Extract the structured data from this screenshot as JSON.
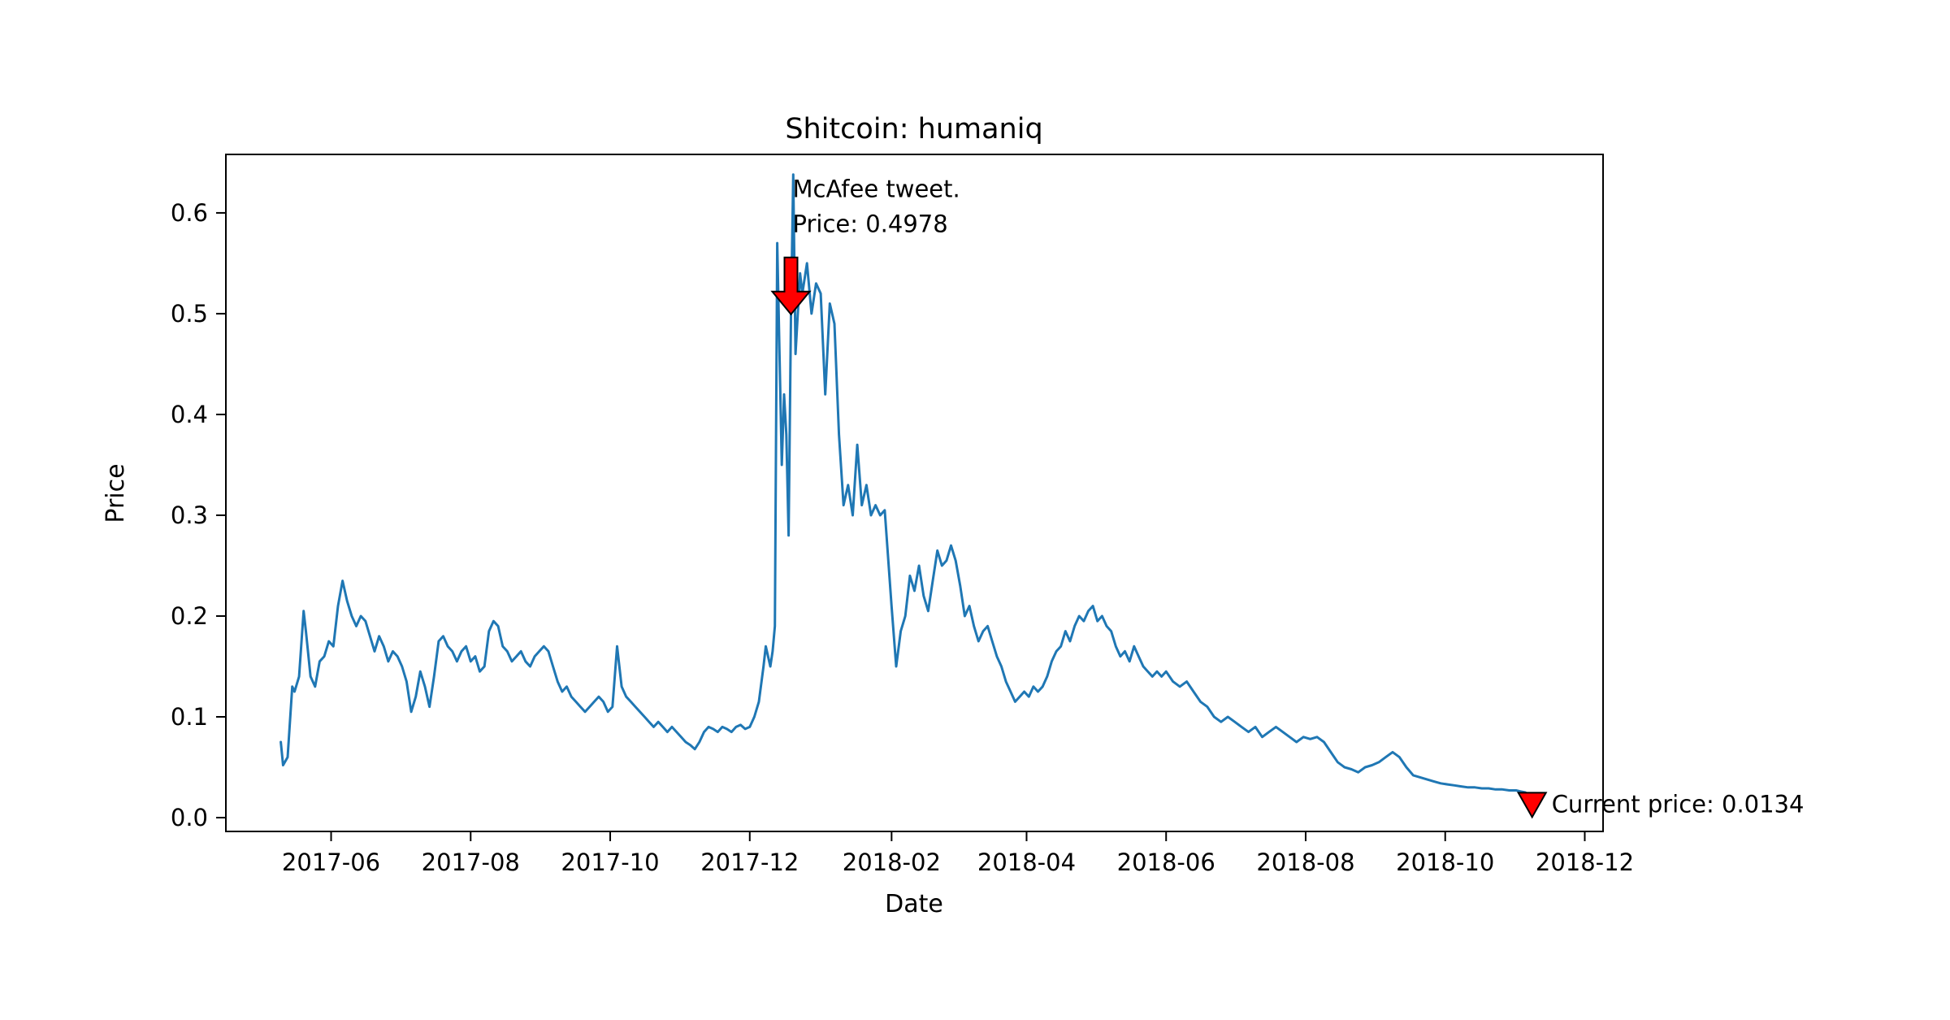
{
  "figure": {
    "background": "#ffffff"
  },
  "chart_data": {
    "type": "line",
    "title": "Shitcoin: humaniq",
    "xlabel": "Date",
    "ylabel": "Price",
    "line_color": "#1f77b4",
    "grid": false,
    "legend": "none",
    "xlim": [
      "2017-04-16",
      "2018-12-09"
    ],
    "ylim": [
      -0.0137,
      0.658
    ],
    "xticks": [
      "2017-06",
      "2017-08",
      "2017-10",
      "2017-12",
      "2018-02",
      "2018-04",
      "2018-06",
      "2018-08",
      "2018-10",
      "2018-12"
    ],
    "yticks": [
      0.0,
      0.1,
      0.2,
      0.3,
      0.4,
      0.5,
      0.6
    ],
    "points": [
      [
        "2017-05-10",
        0.075
      ],
      [
        "2017-05-11",
        0.052
      ],
      [
        "2017-05-13",
        0.06
      ],
      [
        "2017-05-15",
        0.13
      ],
      [
        "2017-05-16",
        0.125
      ],
      [
        "2017-05-18",
        0.14
      ],
      [
        "2017-05-20",
        0.205
      ],
      [
        "2017-05-21",
        0.185
      ],
      [
        "2017-05-23",
        0.14
      ],
      [
        "2017-05-25",
        0.13
      ],
      [
        "2017-05-27",
        0.155
      ],
      [
        "2017-05-29",
        0.16
      ],
      [
        "2017-05-31",
        0.175
      ],
      [
        "2017-06-02",
        0.17
      ],
      [
        "2017-06-04",
        0.21
      ],
      [
        "2017-06-06",
        0.235
      ],
      [
        "2017-06-08",
        0.215
      ],
      [
        "2017-06-10",
        0.2
      ],
      [
        "2017-06-12",
        0.19
      ],
      [
        "2017-06-14",
        0.2
      ],
      [
        "2017-06-16",
        0.195
      ],
      [
        "2017-06-18",
        0.18
      ],
      [
        "2017-06-20",
        0.165
      ],
      [
        "2017-06-22",
        0.18
      ],
      [
        "2017-06-24",
        0.17
      ],
      [
        "2017-06-26",
        0.155
      ],
      [
        "2017-06-28",
        0.165
      ],
      [
        "2017-06-30",
        0.16
      ],
      [
        "2017-07-02",
        0.15
      ],
      [
        "2017-07-04",
        0.135
      ],
      [
        "2017-07-06",
        0.105
      ],
      [
        "2017-07-08",
        0.12
      ],
      [
        "2017-07-10",
        0.145
      ],
      [
        "2017-07-12",
        0.13
      ],
      [
        "2017-07-14",
        0.11
      ],
      [
        "2017-07-16",
        0.14
      ],
      [
        "2017-07-18",
        0.175
      ],
      [
        "2017-07-20",
        0.18
      ],
      [
        "2017-07-22",
        0.17
      ],
      [
        "2017-07-24",
        0.165
      ],
      [
        "2017-07-26",
        0.155
      ],
      [
        "2017-07-28",
        0.165
      ],
      [
        "2017-07-30",
        0.17
      ],
      [
        "2017-08-01",
        0.155
      ],
      [
        "2017-08-03",
        0.16
      ],
      [
        "2017-08-05",
        0.145
      ],
      [
        "2017-08-07",
        0.15
      ],
      [
        "2017-08-09",
        0.185
      ],
      [
        "2017-08-11",
        0.195
      ],
      [
        "2017-08-13",
        0.19
      ],
      [
        "2017-08-15",
        0.17
      ],
      [
        "2017-08-17",
        0.165
      ],
      [
        "2017-08-19",
        0.155
      ],
      [
        "2017-08-21",
        0.16
      ],
      [
        "2017-08-23",
        0.165
      ],
      [
        "2017-08-25",
        0.155
      ],
      [
        "2017-08-27",
        0.15
      ],
      [
        "2017-08-29",
        0.16
      ],
      [
        "2017-08-31",
        0.165
      ],
      [
        "2017-09-02",
        0.17
      ],
      [
        "2017-09-04",
        0.165
      ],
      [
        "2017-09-06",
        0.15
      ],
      [
        "2017-09-08",
        0.135
      ],
      [
        "2017-09-10",
        0.125
      ],
      [
        "2017-09-12",
        0.13
      ],
      [
        "2017-09-14",
        0.12
      ],
      [
        "2017-09-16",
        0.115
      ],
      [
        "2017-09-18",
        0.11
      ],
      [
        "2017-09-20",
        0.105
      ],
      [
        "2017-09-22",
        0.11
      ],
      [
        "2017-09-24",
        0.115
      ],
      [
        "2017-09-26",
        0.12
      ],
      [
        "2017-09-28",
        0.115
      ],
      [
        "2017-09-30",
        0.105
      ],
      [
        "2017-10-02",
        0.11
      ],
      [
        "2017-10-04",
        0.17
      ],
      [
        "2017-10-06",
        0.13
      ],
      [
        "2017-10-08",
        0.12
      ],
      [
        "2017-10-10",
        0.115
      ],
      [
        "2017-10-12",
        0.11
      ],
      [
        "2017-10-14",
        0.105
      ],
      [
        "2017-10-16",
        0.1
      ],
      [
        "2017-10-18",
        0.095
      ],
      [
        "2017-10-20",
        0.09
      ],
      [
        "2017-10-22",
        0.095
      ],
      [
        "2017-10-24",
        0.09
      ],
      [
        "2017-10-26",
        0.085
      ],
      [
        "2017-10-28",
        0.09
      ],
      [
        "2017-10-30",
        0.085
      ],
      [
        "2017-11-01",
        0.08
      ],
      [
        "2017-11-03",
        0.075
      ],
      [
        "2017-11-05",
        0.072
      ],
      [
        "2017-11-07",
        0.068
      ],
      [
        "2017-11-09",
        0.075
      ],
      [
        "2017-11-11",
        0.085
      ],
      [
        "2017-11-13",
        0.09
      ],
      [
        "2017-11-15",
        0.088
      ],
      [
        "2017-11-17",
        0.085
      ],
      [
        "2017-11-19",
        0.09
      ],
      [
        "2017-11-21",
        0.088
      ],
      [
        "2017-11-23",
        0.085
      ],
      [
        "2017-11-25",
        0.09
      ],
      [
        "2017-11-27",
        0.092
      ],
      [
        "2017-11-29",
        0.088
      ],
      [
        "2017-12-01",
        0.09
      ],
      [
        "2017-12-03",
        0.1
      ],
      [
        "2017-12-05",
        0.115
      ],
      [
        "2017-12-07",
        0.15
      ],
      [
        "2017-12-08",
        0.17
      ],
      [
        "2017-12-09",
        0.16
      ],
      [
        "2017-12-10",
        0.15
      ],
      [
        "2017-12-11",
        0.165
      ],
      [
        "2017-12-12",
        0.19
      ],
      [
        "2017-12-13",
        0.57
      ],
      [
        "2017-12-14",
        0.46
      ],
      [
        "2017-12-15",
        0.35
      ],
      [
        "2017-12-16",
        0.42
      ],
      [
        "2017-12-17",
        0.38
      ],
      [
        "2017-12-18",
        0.28
      ],
      [
        "2017-12-19",
        0.4978
      ],
      [
        "2017-12-20",
        0.638
      ],
      [
        "2017-12-21",
        0.46
      ],
      [
        "2017-12-22",
        0.5
      ],
      [
        "2017-12-23",
        0.54
      ],
      [
        "2017-12-24",
        0.52
      ],
      [
        "2017-12-26",
        0.55
      ],
      [
        "2017-12-28",
        0.5
      ],
      [
        "2017-12-30",
        0.53
      ],
      [
        "2018-01-01",
        0.52
      ],
      [
        "2018-01-03",
        0.42
      ],
      [
        "2018-01-05",
        0.51
      ],
      [
        "2018-01-07",
        0.49
      ],
      [
        "2018-01-09",
        0.38
      ],
      [
        "2018-01-11",
        0.31
      ],
      [
        "2018-01-13",
        0.33
      ],
      [
        "2018-01-15",
        0.3
      ],
      [
        "2018-01-17",
        0.37
      ],
      [
        "2018-01-19",
        0.31
      ],
      [
        "2018-01-21",
        0.33
      ],
      [
        "2018-01-23",
        0.3
      ],
      [
        "2018-01-25",
        0.31
      ],
      [
        "2018-01-27",
        0.3
      ],
      [
        "2018-01-29",
        0.305
      ],
      [
        "2018-02-01",
        0.21
      ],
      [
        "2018-02-03",
        0.15
      ],
      [
        "2018-02-05",
        0.185
      ],
      [
        "2018-02-07",
        0.2
      ],
      [
        "2018-02-09",
        0.24
      ],
      [
        "2018-02-11",
        0.225
      ],
      [
        "2018-02-13",
        0.25
      ],
      [
        "2018-02-15",
        0.22
      ],
      [
        "2018-02-17",
        0.205
      ],
      [
        "2018-02-19",
        0.235
      ],
      [
        "2018-02-21",
        0.265
      ],
      [
        "2018-02-23",
        0.25
      ],
      [
        "2018-02-25",
        0.255
      ],
      [
        "2018-02-27",
        0.27
      ],
      [
        "2018-03-01",
        0.255
      ],
      [
        "2018-03-03",
        0.23
      ],
      [
        "2018-03-05",
        0.2
      ],
      [
        "2018-03-07",
        0.21
      ],
      [
        "2018-03-09",
        0.19
      ],
      [
        "2018-03-11",
        0.175
      ],
      [
        "2018-03-13",
        0.185
      ],
      [
        "2018-03-15",
        0.19
      ],
      [
        "2018-03-17",
        0.175
      ],
      [
        "2018-03-19",
        0.16
      ],
      [
        "2018-03-21",
        0.15
      ],
      [
        "2018-03-23",
        0.135
      ],
      [
        "2018-03-25",
        0.125
      ],
      [
        "2018-03-27",
        0.115
      ],
      [
        "2018-03-29",
        0.12
      ],
      [
        "2018-03-31",
        0.125
      ],
      [
        "2018-04-02",
        0.12
      ],
      [
        "2018-04-04",
        0.13
      ],
      [
        "2018-04-06",
        0.125
      ],
      [
        "2018-04-08",
        0.13
      ],
      [
        "2018-04-10",
        0.14
      ],
      [
        "2018-04-12",
        0.155
      ],
      [
        "2018-04-14",
        0.165
      ],
      [
        "2018-04-16",
        0.17
      ],
      [
        "2018-04-18",
        0.185
      ],
      [
        "2018-04-20",
        0.175
      ],
      [
        "2018-04-22",
        0.19
      ],
      [
        "2018-04-24",
        0.2
      ],
      [
        "2018-04-26",
        0.195
      ],
      [
        "2018-04-28",
        0.205
      ],
      [
        "2018-04-30",
        0.21
      ],
      [
        "2018-05-02",
        0.195
      ],
      [
        "2018-05-04",
        0.2
      ],
      [
        "2018-05-06",
        0.19
      ],
      [
        "2018-05-08",
        0.185
      ],
      [
        "2018-05-10",
        0.17
      ],
      [
        "2018-05-12",
        0.16
      ],
      [
        "2018-05-14",
        0.165
      ],
      [
        "2018-05-16",
        0.155
      ],
      [
        "2018-05-18",
        0.17
      ],
      [
        "2018-05-20",
        0.16
      ],
      [
        "2018-05-22",
        0.15
      ],
      [
        "2018-05-24",
        0.145
      ],
      [
        "2018-05-26",
        0.14
      ],
      [
        "2018-05-28",
        0.145
      ],
      [
        "2018-05-30",
        0.14
      ],
      [
        "2018-06-01",
        0.145
      ],
      [
        "2018-06-04",
        0.135
      ],
      [
        "2018-06-07",
        0.13
      ],
      [
        "2018-06-10",
        0.135
      ],
      [
        "2018-06-13",
        0.125
      ],
      [
        "2018-06-16",
        0.115
      ],
      [
        "2018-06-19",
        0.11
      ],
      [
        "2018-06-22",
        0.1
      ],
      [
        "2018-06-25",
        0.095
      ],
      [
        "2018-06-28",
        0.1
      ],
      [
        "2018-07-01",
        0.095
      ],
      [
        "2018-07-04",
        0.09
      ],
      [
        "2018-07-07",
        0.085
      ],
      [
        "2018-07-10",
        0.09
      ],
      [
        "2018-07-13",
        0.08
      ],
      [
        "2018-07-16",
        0.085
      ],
      [
        "2018-07-19",
        0.09
      ],
      [
        "2018-07-22",
        0.085
      ],
      [
        "2018-07-25",
        0.08
      ],
      [
        "2018-07-28",
        0.075
      ],
      [
        "2018-07-31",
        0.08
      ],
      [
        "2018-08-03",
        0.078
      ],
      [
        "2018-08-06",
        0.08
      ],
      [
        "2018-08-09",
        0.075
      ],
      [
        "2018-08-12",
        0.065
      ],
      [
        "2018-08-15",
        0.055
      ],
      [
        "2018-08-18",
        0.05
      ],
      [
        "2018-08-21",
        0.048
      ],
      [
        "2018-08-24",
        0.045
      ],
      [
        "2018-08-27",
        0.05
      ],
      [
        "2018-08-30",
        0.052
      ],
      [
        "2018-09-02",
        0.055
      ],
      [
        "2018-09-05",
        0.06
      ],
      [
        "2018-09-08",
        0.065
      ],
      [
        "2018-09-11",
        0.06
      ],
      [
        "2018-09-14",
        0.05
      ],
      [
        "2018-09-17",
        0.042
      ],
      [
        "2018-09-20",
        0.04
      ],
      [
        "2018-09-23",
        0.038
      ],
      [
        "2018-09-26",
        0.036
      ],
      [
        "2018-09-29",
        0.034
      ],
      [
        "2018-10-02",
        0.033
      ],
      [
        "2018-10-05",
        0.032
      ],
      [
        "2018-10-08",
        0.031
      ],
      [
        "2018-10-11",
        0.03
      ],
      [
        "2018-10-14",
        0.03
      ],
      [
        "2018-10-17",
        0.029
      ],
      [
        "2018-10-20",
        0.029
      ],
      [
        "2018-10-23",
        0.028
      ],
      [
        "2018-10-26",
        0.028
      ],
      [
        "2018-10-29",
        0.027
      ],
      [
        "2018-11-01",
        0.027
      ],
      [
        "2018-11-03",
        0.026
      ],
      [
        "2018-11-05",
        0.025
      ],
      [
        "2018-11-07",
        0.022
      ],
      [
        "2018-11-08",
        0.0134
      ]
    ],
    "annotations": [
      {
        "name": "mcafee-tweet",
        "lines": [
          "McAfee tweet.",
          "Price: 0.4978"
        ],
        "x": "2017-12-19",
        "y": 0.4978,
        "marker": "down-arrow",
        "marker_color": "#ff0000",
        "marker_edge_color": "#000000"
      },
      {
        "name": "current-price",
        "text": "Current price: 0.0134",
        "x": "2018-11-08",
        "y": 0.0134,
        "marker": "triangle-down",
        "marker_color": "#ff0000",
        "marker_edge_color": "#000000"
      }
    ]
  }
}
